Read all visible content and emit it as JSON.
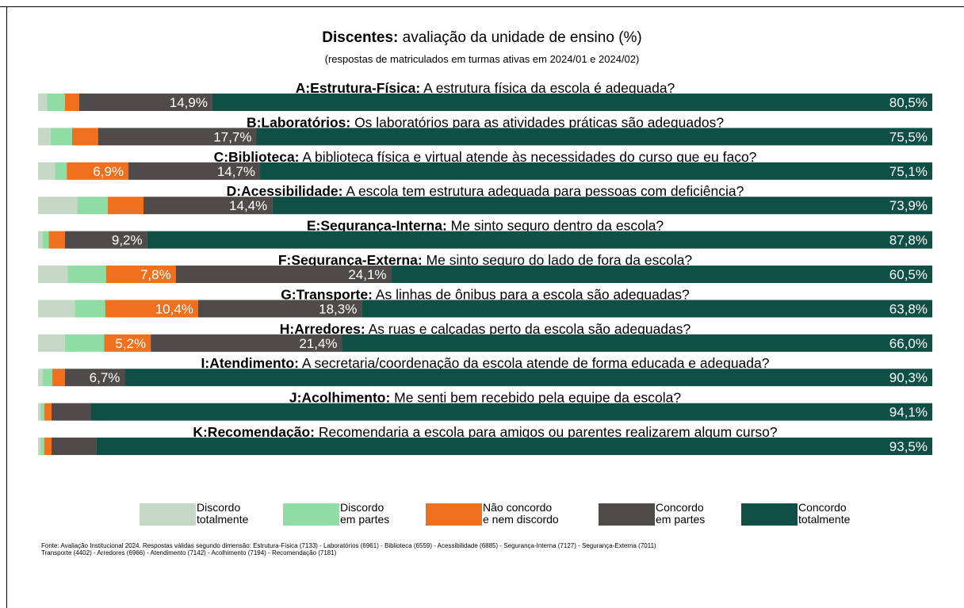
{
  "title_bold": "Discentes:",
  "title_rest": " avaliação da unidade de ensino (%)",
  "subtitle": "(respostas de matriculados em turmas ativas em 2024/01 e 2024/02)",
  "colors": {
    "discordo_totalmente": "#c5d8c8",
    "discordo_em_partes": "#8fdca4",
    "neutro": "#f0701e",
    "concordo_em_partes": "#4f4b4b",
    "concordo_totalmente": "#0f4f45"
  },
  "legend": [
    {
      "key": "discordo_totalmente",
      "label": "Discordo\ntotalmente"
    },
    {
      "key": "discordo_em_partes",
      "label": "Discordo\nem partes"
    },
    {
      "key": "neutro",
      "label": "Não concordo\ne nem discordo"
    },
    {
      "key": "concordo_em_partes",
      "label": "Concordo\nem partes"
    },
    {
      "key": "concordo_totalmente",
      "label": "Concordo\ntotalmente"
    }
  ],
  "chart_data": {
    "type": "bar",
    "orientation": "horizontal",
    "stacked": true,
    "unit": "%",
    "series_order": [
      "discordo_totalmente",
      "discordo_em_partes",
      "neutro",
      "concordo_em_partes",
      "concordo_totalmente"
    ],
    "items": [
      {
        "label_bold": "A:Estrutura-Física:",
        "label_rest": " A estrutura física da escola é adequada?",
        "values": [
          1.0,
          2.0,
          1.6,
          14.9,
          80.5
        ],
        "labels": [
          "",
          "",
          "",
          "14,9%",
          "80,5%"
        ]
      },
      {
        "label_bold": "B:Laboratórios:",
        "label_rest": " Os laboratórios para as atividades práticas são adequados?",
        "values": [
          1.4,
          2.4,
          2.9,
          17.7,
          75.5
        ],
        "labels": [
          "",
          "",
          "",
          "17,7%",
          "75,5%"
        ]
      },
      {
        "label_bold": "C:Biblioteca:",
        "label_rest": " A biblioteca física e virtual atende às necessidades do curso que eu faço?",
        "values": [
          1.9,
          1.3,
          6.9,
          14.7,
          75.1
        ],
        "labels": [
          "",
          "",
          "6,9%",
          "14,7%",
          "75,1%"
        ]
      },
      {
        "label_bold": "D:Acessibilidade:",
        "label_rest": " A escola tem estrutura adequada para pessoas com deficiência?",
        "values": [
          4.4,
          3.4,
          4.0,
          14.4,
          73.9
        ],
        "labels": [
          "",
          "",
          "",
          "14,4%",
          "73,9%"
        ]
      },
      {
        "label_bold": "E:Segurança-Interna:",
        "label_rest": " Me sinto seguro dentro da escola?",
        "values": [
          0.5,
          0.7,
          1.8,
          9.2,
          87.8
        ],
        "labels": [
          "",
          "",
          "",
          "9,2%",
          "87,8%"
        ]
      },
      {
        "label_bold": "F:Segurança-Externa:",
        "label_rest": " Me sinto seguro do lado de fora da escola?",
        "values": [
          3.3,
          4.3,
          7.8,
          24.1,
          60.5
        ],
        "labels": [
          "",
          "",
          "7,8%",
          "24,1%",
          "60,5%"
        ]
      },
      {
        "label_bold": "G:Transporte:",
        "label_rest": " As linhas de ônibus para a escola são adequadas?",
        "values": [
          4.1,
          3.4,
          10.4,
          18.3,
          63.8
        ],
        "labels": [
          "",
          "",
          "10,4%",
          "18,3%",
          "63,8%"
        ]
      },
      {
        "label_bold": "H:Arredores:",
        "label_rest": " As ruas e calçadas perto da escola são adequadas?",
        "values": [
          3.0,
          4.4,
          5.2,
          21.4,
          66.0
        ],
        "labels": [
          "",
          "",
          "5,2%",
          "21,4%",
          "66,0%"
        ]
      },
      {
        "label_bold": "I:Atendimento:",
        "label_rest": " A secretaria/coordenação da escola atende de forma educada e adequada?",
        "values": [
          0.5,
          1.1,
          1.4,
          6.7,
          90.3
        ],
        "labels": [
          "",
          "",
          "",
          "6,7%",
          "90,3%"
        ]
      },
      {
        "label_bold": "J:Acolhimento:",
        "label_rest": " Me senti bem recebido pela equipe da escola?",
        "values": [
          0.3,
          0.4,
          0.8,
          4.4,
          94.1
        ],
        "labels": [
          "",
          "",
          "",
          "",
          "94,1%"
        ]
      },
      {
        "label_bold": "K:Recomendação:",
        "label_rest": " Recomendaria a escola para amigos ou parentes realizarem algum curso?",
        "values": [
          0.3,
          0.4,
          0.8,
          5.0,
          93.5
        ],
        "labels": [
          "",
          "",
          "",
          "",
          "93,5%"
        ]
      }
    ],
    "xlim": [
      0,
      100
    ],
    "grid": false,
    "legend_position": "bottom"
  },
  "source_line1": "Fonte: Avaliação Institucional 2024. Respostas válidas segundo dimensão: Estrutura-Física (7133) - Laboratórios (6961) - Biblioteca (6559) - Acessibilidade (6885) - Segurança-Interna (7127) - Segurança-Externa (7011)",
  "source_line2": "Transporte (4402) - Arredores (6966) - Atendimento (7142) - Acolhimento (7194) - Recomendação (7181)"
}
